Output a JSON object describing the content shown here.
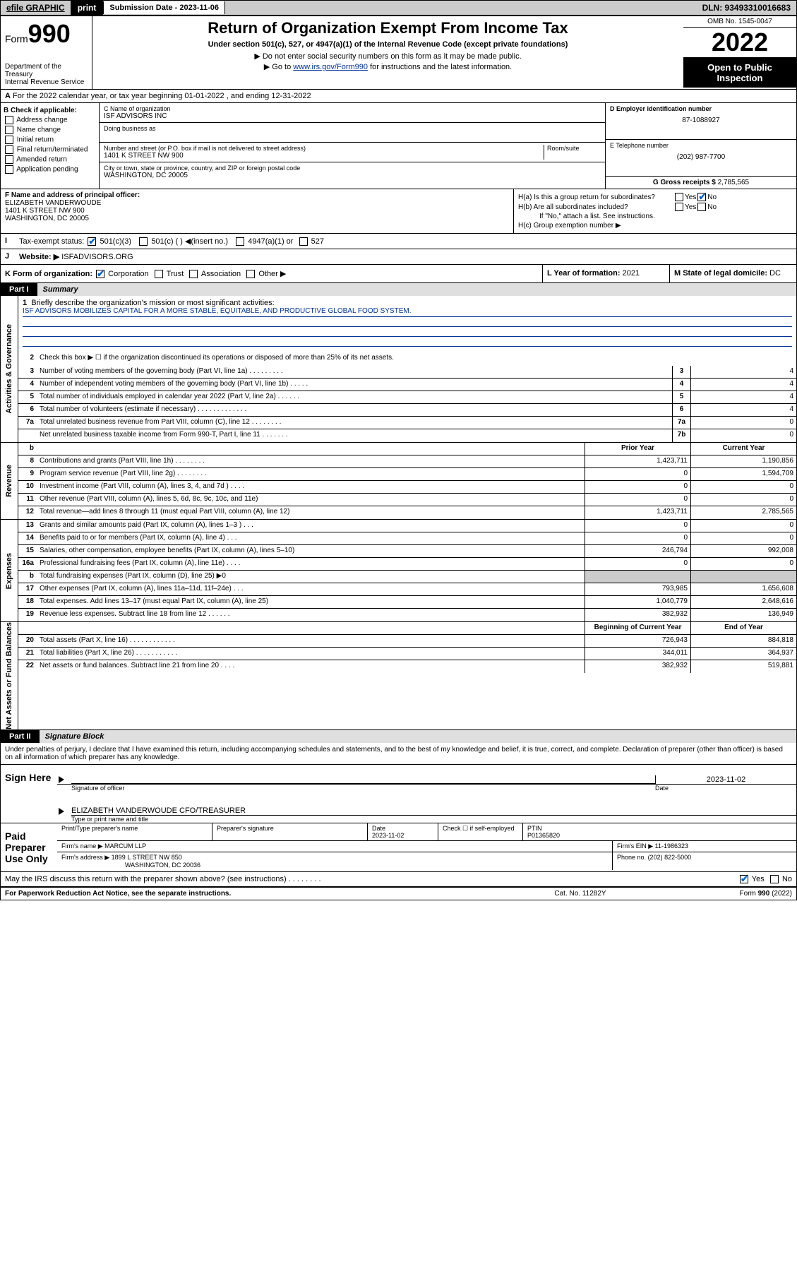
{
  "toolbar": {
    "efile": "efile GRAPHIC",
    "print": "print",
    "subdate_lbl": "Submission Date - 2023-11-06",
    "dln": "DLN: 93493310016683"
  },
  "header": {
    "form_word": "Form",
    "form_num": "990",
    "dept": "Department of the Treasury",
    "irs": "Internal Revenue Service",
    "title": "Return of Organization Exempt From Income Tax",
    "sub": "Under section 501(c), 527, or 4947(a)(1) of the Internal Revenue Code (except private foundations)",
    "sub2": "▶ Do not enter social security numbers on this form as it may be made public.",
    "sub3_pre": "▶ Go to ",
    "sub3_link": "www.irs.gov/Form990",
    "sub3_post": " for instructions and the latest information.",
    "omb": "OMB No. 1545-0047",
    "year": "2022",
    "inspect": "Open to Public Inspection"
  },
  "section_a": "For the 2022 calendar year, or tax year beginning 01-01-2022    , and ending 12-31-2022",
  "col_b": {
    "hdr": "B Check if applicable:",
    "o1": "Address change",
    "o2": "Name change",
    "o3": "Initial return",
    "o4": "Final return/terminated",
    "o5": "Amended return",
    "o6": "Application pending"
  },
  "col_c": {
    "name_lbl": "C Name of organization",
    "name": "ISF ADVISORS INC",
    "dba_lbl": "Doing business as",
    "street_lbl": "Number and street (or P.O. box if mail is not delivered to street address)",
    "room_lbl": "Room/suite",
    "street": "1401 K STREET NW 900",
    "city_lbl": "City or town, state or province, country, and ZIP or foreign postal code",
    "city": "WASHINGTON, DC  20005"
  },
  "col_de": {
    "d_lbl": "D Employer identification number",
    "d_val": "87-1088927",
    "e_lbl": "E Telephone number",
    "e_val": "(202) 987-7700",
    "g_lbl": "G Gross receipts $",
    "g_val": "2,785,565"
  },
  "row_f": {
    "lbl": "F  Name and address of principal officer:",
    "l1": "ELIZABETH VANDERWOUDE",
    "l2": "1401 K STREET NW 900",
    "l3": "WASHINGTON, DC  20005"
  },
  "row_h": {
    "ha": "H(a)  Is this a group return for subordinates?",
    "hb": "H(b)  Are all subordinates included?",
    "hb2": "If \"No,\" attach a list. See instructions.",
    "hc": "H(c)  Group exemption number ▶",
    "yes": "Yes",
    "no": "No"
  },
  "row_i": {
    "lbl": "Tax-exempt status:",
    "o1": "501(c)(3)",
    "o2": "501(c) (  ) ◀(insert no.)",
    "o3": "4947(a)(1) or",
    "o4": "527"
  },
  "row_j": {
    "lbl": "Website: ▶",
    "val": "ISFADVISORS.ORG"
  },
  "row_k": {
    "lbl": "K Form of organization:",
    "o1": "Corporation",
    "o2": "Trust",
    "o3": "Association",
    "o4": "Other ▶",
    "l_lbl": "L Year of formation:",
    "l_val": "2021",
    "m_lbl": "M State of legal domicile:",
    "m_val": "DC"
  },
  "part1": {
    "num": "Part I",
    "title": "Summary"
  },
  "summary": {
    "s1_lbl": "Briefly describe the organization's mission or most significant activities:",
    "s1_val": "ISF ADVISORS MOBILIZES CAPITAL FOR A MORE STABLE, EQUITABLE, AND PRODUCTIVE GLOBAL FOOD SYSTEM.",
    "s2": "Check this box ▶ ☐  if the organization discontinued its operations or disposed of more than 25% of its net assets.",
    "rows_gov": [
      {
        "n": "3",
        "d": "Number of voting members of the governing body (Part VI, line 1a)  .   .   .   .   .   .   .   .   .",
        "box": "3",
        "v": "4"
      },
      {
        "n": "4",
        "d": "Number of independent voting members of the governing body (Part VI, line 1b)  .   .   .   .   .",
        "box": "4",
        "v": "4"
      },
      {
        "n": "5",
        "d": "Total number of individuals employed in calendar year 2022 (Part V, line 2a)  .   .   .   .   .   .",
        "box": "5",
        "v": "4"
      },
      {
        "n": "6",
        "d": "Total number of volunteers (estimate if necessary)  .   .   .   .   .   .   .   .   .   .   .   .   .",
        "box": "6",
        "v": "4"
      },
      {
        "n": "7a",
        "d": "Total unrelated business revenue from Part VIII, column (C), line 12  .   .   .   .   .   .   .   .",
        "box": "7a",
        "v": "0"
      },
      {
        "n": "",
        "d": "Net unrelated business taxable income from Form 990-T, Part I, line 11  .   .   .   .   .   .   .",
        "box": "7b",
        "v": "0"
      }
    ],
    "hdr_prior": "Prior Year",
    "hdr_curr": "Current Year",
    "rows_rev": [
      {
        "n": "8",
        "d": "Contributions and grants (Part VIII, line 1h)  .   .   .   .   .   .   .   .",
        "p": "1,423,711",
        "c": "1,190,856"
      },
      {
        "n": "9",
        "d": "Program service revenue (Part VIII, line 2g)  .   .   .   .   .   .   .   .",
        "p": "0",
        "c": "1,594,709"
      },
      {
        "n": "10",
        "d": "Investment income (Part VIII, column (A), lines 3, 4, and 7d )  .   .   .   .",
        "p": "0",
        "c": "0"
      },
      {
        "n": "11",
        "d": "Other revenue (Part VIII, column (A), lines 5, 6d, 8c, 9c, 10c, and 11e)",
        "p": "0",
        "c": "0"
      },
      {
        "n": "12",
        "d": "Total revenue—add lines 8 through 11 (must equal Part VIII, column (A), line 12)",
        "p": "1,423,711",
        "c": "2,785,565"
      }
    ],
    "rows_exp": [
      {
        "n": "13",
        "d": "Grants and similar amounts paid (Part IX, column (A), lines 1–3 )  .   .   .",
        "p": "0",
        "c": "0"
      },
      {
        "n": "14",
        "d": "Benefits paid to or for members (Part IX, column (A), line 4)  .   .   .",
        "p": "0",
        "c": "0"
      },
      {
        "n": "15",
        "d": "Salaries, other compensation, employee benefits (Part IX, column (A), lines 5–10)",
        "p": "246,794",
        "c": "992,008"
      },
      {
        "n": "16a",
        "d": "Professional fundraising fees (Part IX, column (A), line 11e)  .   .   .   .",
        "p": "0",
        "c": "0"
      },
      {
        "n": "b",
        "d": "Total fundraising expenses (Part IX, column (D), line 25) ▶0",
        "p": "",
        "c": "",
        "gray": true
      },
      {
        "n": "17",
        "d": "Other expenses (Part IX, column (A), lines 11a–11d, 11f–24e)  .   .   .",
        "p": "793,985",
        "c": "1,656,608"
      },
      {
        "n": "18",
        "d": "Total expenses. Add lines 13–17 (must equal Part IX, column (A), line 25)",
        "p": "1,040,779",
        "c": "2,648,616"
      },
      {
        "n": "19",
        "d": "Revenue less expenses. Subtract line 18 from line 12  .   .   .   .   .   .",
        "p": "382,932",
        "c": "136,949"
      }
    ],
    "hdr_beg": "Beginning of Current Year",
    "hdr_end": "End of Year",
    "rows_net": [
      {
        "n": "20",
        "d": "Total assets (Part X, line 16)  .   .   .   .   .   .   .   .   .   .   .   .",
        "p": "726,943",
        "c": "884,818"
      },
      {
        "n": "21",
        "d": "Total liabilities (Part X, line 26)  .   .   .   .   .   .   .   .   .   .   .",
        "p": "344,011",
        "c": "364,937"
      },
      {
        "n": "22",
        "d": "Net assets or fund balances. Subtract line 21 from line 20  .   .   .   .",
        "p": "382,932",
        "c": "519,881"
      }
    ],
    "vlabels": {
      "gov": "Activities & Governance",
      "rev": "Revenue",
      "exp": "Expenses",
      "net": "Net Assets or Fund Balances"
    }
  },
  "part2": {
    "num": "Part II",
    "title": "Signature Block"
  },
  "sig_intro": "Under penalties of perjury, I declare that I have examined this return, including accompanying schedules and statements, and to the best of my knowledge and belief, it is true, correct, and complete. Declaration of preparer (other than officer) is based on all information of which preparer has any knowledge.",
  "sign_here": {
    "lbl": "Sign Here",
    "sig_lbl": "Signature of officer",
    "date_lbl": "Date",
    "date_val": "2023-11-02",
    "name": "ELIZABETH VANDERWOUDE  CFO/TREASURER",
    "name_lbl": "Type or print name and title"
  },
  "paid_prep": {
    "lbl": "Paid Preparer Use Only",
    "c1": "Print/Type preparer's name",
    "c2": "Preparer's signature",
    "c3": "Date",
    "c3v": "2023-11-02",
    "c4": "Check ☐ if self-employed",
    "c5": "PTIN",
    "c5v": "P01365820",
    "firm_lbl": "Firm's name    ▶",
    "firm": "MARCUM LLP",
    "ein_lbl": "Firm's EIN ▶",
    "ein": "11-1986323",
    "addr_lbl": "Firm's address ▶",
    "addr1": "1899 L STREET NW 850",
    "addr2": "WASHINGTON, DC  20036",
    "phone_lbl": "Phone no.",
    "phone": "(202) 822-5000"
  },
  "discuss": {
    "q": "May the IRS discuss this return with the preparer shown above? (see instructions)  .   .   .   .   .   .   .   .",
    "yes": "Yes",
    "no": "No"
  },
  "footer": {
    "f1": "For Paperwork Reduction Act Notice, see the separate instructions.",
    "f2": "Cat. No. 11282Y",
    "f3": "Form 990 (2022)"
  },
  "row_b_hdr": "b"
}
